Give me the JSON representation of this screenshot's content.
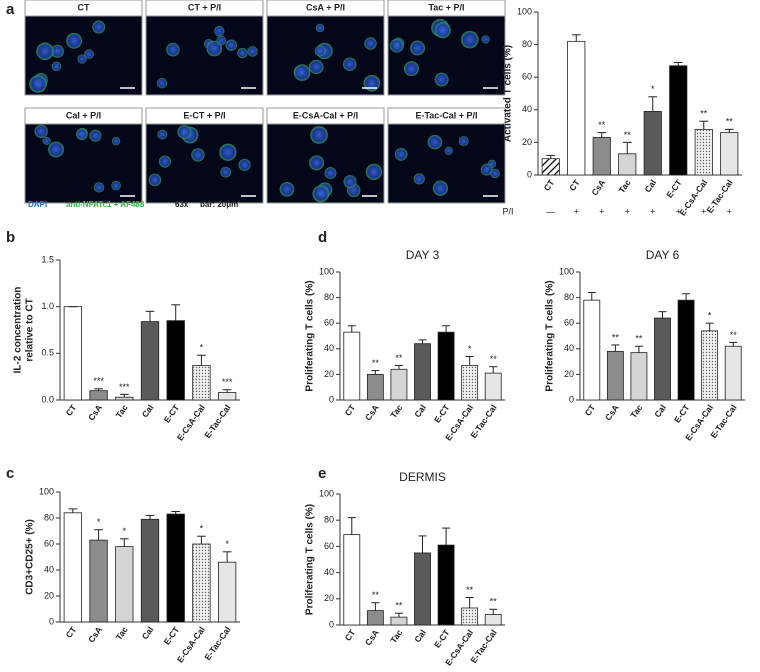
{
  "panel_labels": [
    "a",
    "b",
    "c",
    "d",
    "e"
  ],
  "microscopy": {
    "labels": [
      "CT",
      "CT + P/I",
      "CsA + P/I",
      "Tac + P/I",
      "Cal + P/I",
      "E-CT + P/I",
      "E-CsA-Cal + P/I",
      "E-Tac-Cal + P/I"
    ],
    "legend": [
      "DAPI",
      "anti-NFATc1 + AF488",
      "63x",
      "bar: 20μm"
    ]
  },
  "chart_data": [
    {
      "type": "bar",
      "ylabel": "Activated T cells (%)",
      "categories": [
        "CT",
        "CT",
        "CsA",
        "Tac",
        "Cal",
        "E-CT",
        "E-CsA-Cal",
        "E-Tac-Cal"
      ],
      "values": [
        10,
        82,
        23,
        13,
        39,
        67,
        28,
        26
      ],
      "errors": [
        2,
        4,
        3,
        7,
        9,
        2,
        5,
        2
      ],
      "annotations": [
        null,
        null,
        "**",
        "**",
        "*",
        null,
        "**",
        "**"
      ],
      "colors": [
        "#ffffff",
        "#ffffff",
        "#8c8c8c",
        "#d4d4d4",
        "#5a5a5a",
        "#000000",
        "#e0e0e0",
        "#e6e6e6"
      ],
      "patterns": [
        "hatch",
        null,
        null,
        null,
        null,
        null,
        "dots",
        null
      ],
      "row_label": "P/I",
      "row_values": [
        "—",
        "+",
        "+",
        "+",
        "+",
        "+",
        "+",
        "+"
      ],
      "ylim": [
        0,
        100
      ],
      "yticks": [
        0,
        20,
        40,
        60,
        80,
        100
      ]
    },
    {
      "type": "bar",
      "ylabel": [
        "IL-2 concentration",
        "relative to CT"
      ],
      "categories": [
        "CT",
        "CsA",
        "Tac",
        "Cal",
        "E-CT",
        "E-CsA-Cal",
        "E-Tac-Cal"
      ],
      "values": [
        1.0,
        0.1,
        0.03,
        0.84,
        0.85,
        0.37,
        0.08
      ],
      "errors": [
        0,
        0.02,
        0.03,
        0.11,
        0.17,
        0.11,
        0.03
      ],
      "annotations": [
        null,
        "***",
        "***",
        null,
        null,
        "*",
        "***"
      ],
      "colors": [
        "#ffffff",
        "#8c8c8c",
        "#d4d4d4",
        "#5a5a5a",
        "#000000",
        "#e0e0e0",
        "#e6e6e6"
      ],
      "patterns": [
        null,
        null,
        null,
        null,
        null,
        "dots",
        null
      ],
      "ylim": [
        0,
        1.5
      ],
      "yticks": [
        {
          "value": 0,
          "label": "0.0"
        },
        0.5,
        {
          "value": 1,
          "label": "1.0"
        },
        1.5
      ]
    },
    {
      "type": "bar",
      "ylabel": "CD3+CD25+ (%)",
      "categories": [
        "CT",
        "CsA",
        "Tac",
        "Cal",
        "E-CT",
        "E-CsA-Cal",
        "E-Tac-Cal"
      ],
      "values": [
        84,
        63,
        58,
        79,
        83,
        60,
        46
      ],
      "errors": [
        3,
        8,
        6,
        3,
        2,
        6,
        8
      ],
      "annotations": [
        null,
        "*",
        "*",
        null,
        null,
        "*",
        "*"
      ],
      "colors": [
        "#ffffff",
        "#8c8c8c",
        "#d4d4d4",
        "#5a5a5a",
        "#000000",
        "#e0e0e0",
        "#e6e6e6"
      ],
      "patterns": [
        null,
        null,
        null,
        null,
        null,
        "dots",
        null
      ],
      "ylim": [
        0,
        100
      ],
      "yticks": [
        0,
        20,
        40,
        60,
        80,
        100
      ]
    },
    {
      "type": "bar",
      "title": "DAY 3",
      "ylabel": "Proliferating T cells (%)",
      "categories": [
        "CT",
        "CsA",
        "Tac",
        "Cal",
        "E-CT",
        "E-CsA-Cal",
        "E-Tac-Cal"
      ],
      "values": [
        53,
        20,
        24,
        44,
        53,
        27,
        21
      ],
      "errors": [
        5,
        3,
        3,
        3,
        5,
        7,
        5
      ],
      "annotations": [
        null,
        "**",
        "**",
        null,
        null,
        "*",
        "**"
      ],
      "colors": [
        "#ffffff",
        "#8c8c8c",
        "#d4d4d4",
        "#5a5a5a",
        "#000000",
        "#e0e0e0",
        "#e6e6e6"
      ],
      "patterns": [
        null,
        null,
        null,
        null,
        null,
        "dots",
        null
      ],
      "ylim": [
        0,
        100
      ],
      "yticks": [
        0,
        20,
        40,
        60,
        80,
        100
      ]
    },
    {
      "type": "bar",
      "title": "DAY 6",
      "ylabel": "Proliferating T cells (%)",
      "categories": [
        "CT",
        "CsA",
        "Tac",
        "Cal",
        "E-CT",
        "E-CsA-Cal",
        "E-Tac-Cal"
      ],
      "values": [
        78,
        38,
        37,
        64,
        78,
        54,
        42
      ],
      "errors": [
        6,
        5,
        5,
        5,
        5,
        6,
        3
      ],
      "annotations": [
        null,
        "**",
        "**",
        null,
        null,
        "*",
        "**"
      ],
      "colors": [
        "#ffffff",
        "#8c8c8c",
        "#d4d4d4",
        "#5a5a5a",
        "#000000",
        "#e0e0e0",
        "#e6e6e6"
      ],
      "patterns": [
        null,
        null,
        null,
        null,
        null,
        "dots",
        null
      ],
      "ylim": [
        0,
        100
      ],
      "yticks": [
        0,
        20,
        40,
        60,
        80,
        100
      ]
    },
    {
      "type": "bar",
      "title": "DERMIS",
      "ylabel": "Proliferating T cells (%)",
      "categories": [
        "CT",
        "CsA",
        "Tac",
        "Cal",
        "E-CT",
        "E-CsA-Cal",
        "E-Tac-Cal"
      ],
      "values": [
        69,
        11,
        6,
        55,
        61,
        13,
        8
      ],
      "errors": [
        13,
        6,
        3,
        13,
        13,
        8,
        4
      ],
      "annotations": [
        null,
        "**",
        "**",
        null,
        null,
        "**",
        "**"
      ],
      "colors": [
        "#ffffff",
        "#8c8c8c",
        "#d4d4d4",
        "#5a5a5a",
        "#000000",
        "#e0e0e0",
        "#e6e6e6"
      ],
      "patterns": [
        null,
        null,
        null,
        null,
        null,
        "dots",
        null
      ],
      "ylim": [
        0,
        100
      ],
      "yticks": [
        0,
        20,
        40,
        60,
        80,
        100
      ]
    }
  ]
}
